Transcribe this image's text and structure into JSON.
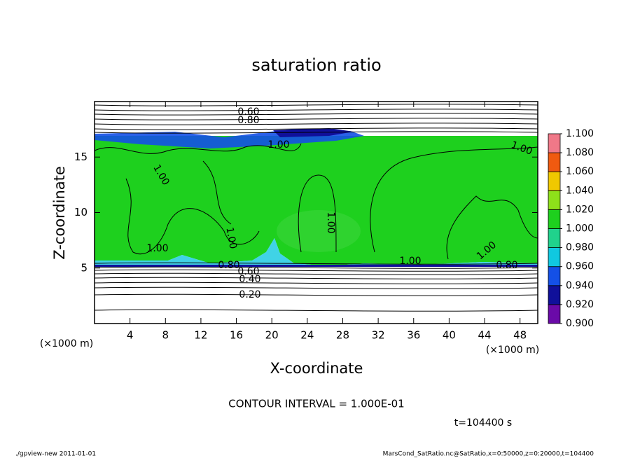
{
  "chart_data": {
    "type": "contour",
    "title": "saturation ratio",
    "xlabel": "X-coordinate",
    "ylabel": "Z-coordinate",
    "x_unit_label": "(×1000 m)",
    "y_unit_label": "(×1000 m)",
    "xlim": [
      0,
      50
    ],
    "xticks": [
      4,
      8,
      12,
      16,
      20,
      24,
      28,
      32,
      36,
      40,
      44,
      48
    ],
    "ylim": [
      0,
      20
    ],
    "yticks": [
      5,
      10,
      15
    ],
    "contour_labels": [
      "0.60",
      "0.80",
      "1.00",
      "1.00",
      "1.00",
      "1.00",
      "1.00",
      "1.00",
      "1.00",
      "1.00",
      "0.80",
      "0.80",
      "0.60",
      "0.40",
      "0.20"
    ],
    "colorbar": {
      "ticks": [
        {
          "value": 0.9,
          "label": "0.900"
        },
        {
          "value": 0.92,
          "label": "0.920"
        },
        {
          "value": 0.94,
          "label": "0.940"
        },
        {
          "value": 0.96,
          "label": "0.960"
        },
        {
          "value": 0.98,
          "label": "0.980"
        },
        {
          "value": 1.0,
          "label": "1.000"
        },
        {
          "value": 1.02,
          "label": "1.020"
        },
        {
          "value": 1.04,
          "label": "1.040"
        },
        {
          "value": 1.06,
          "label": "1.060"
        },
        {
          "value": 1.08,
          "label": "1.080"
        },
        {
          "value": 1.1,
          "label": "1.100"
        }
      ],
      "colors": [
        "#6a0aa8",
        "#10109a",
        "#1450e6",
        "#10c8e0",
        "#20d28c",
        "#1ed01e",
        "#8ee01a",
        "#f0c800",
        "#f05a10",
        "#f07888"
      ]
    },
    "contour_interval": "CONTOUR INTERVAL = 1.000E-01",
    "time_label": "t=104400 s",
    "footer_left": "./gpview-new   2011-01-01",
    "footer_right": "MarsCond_SatRatio.nc@SatRatio,x=0:50000,z=0:20000,t=104400"
  }
}
